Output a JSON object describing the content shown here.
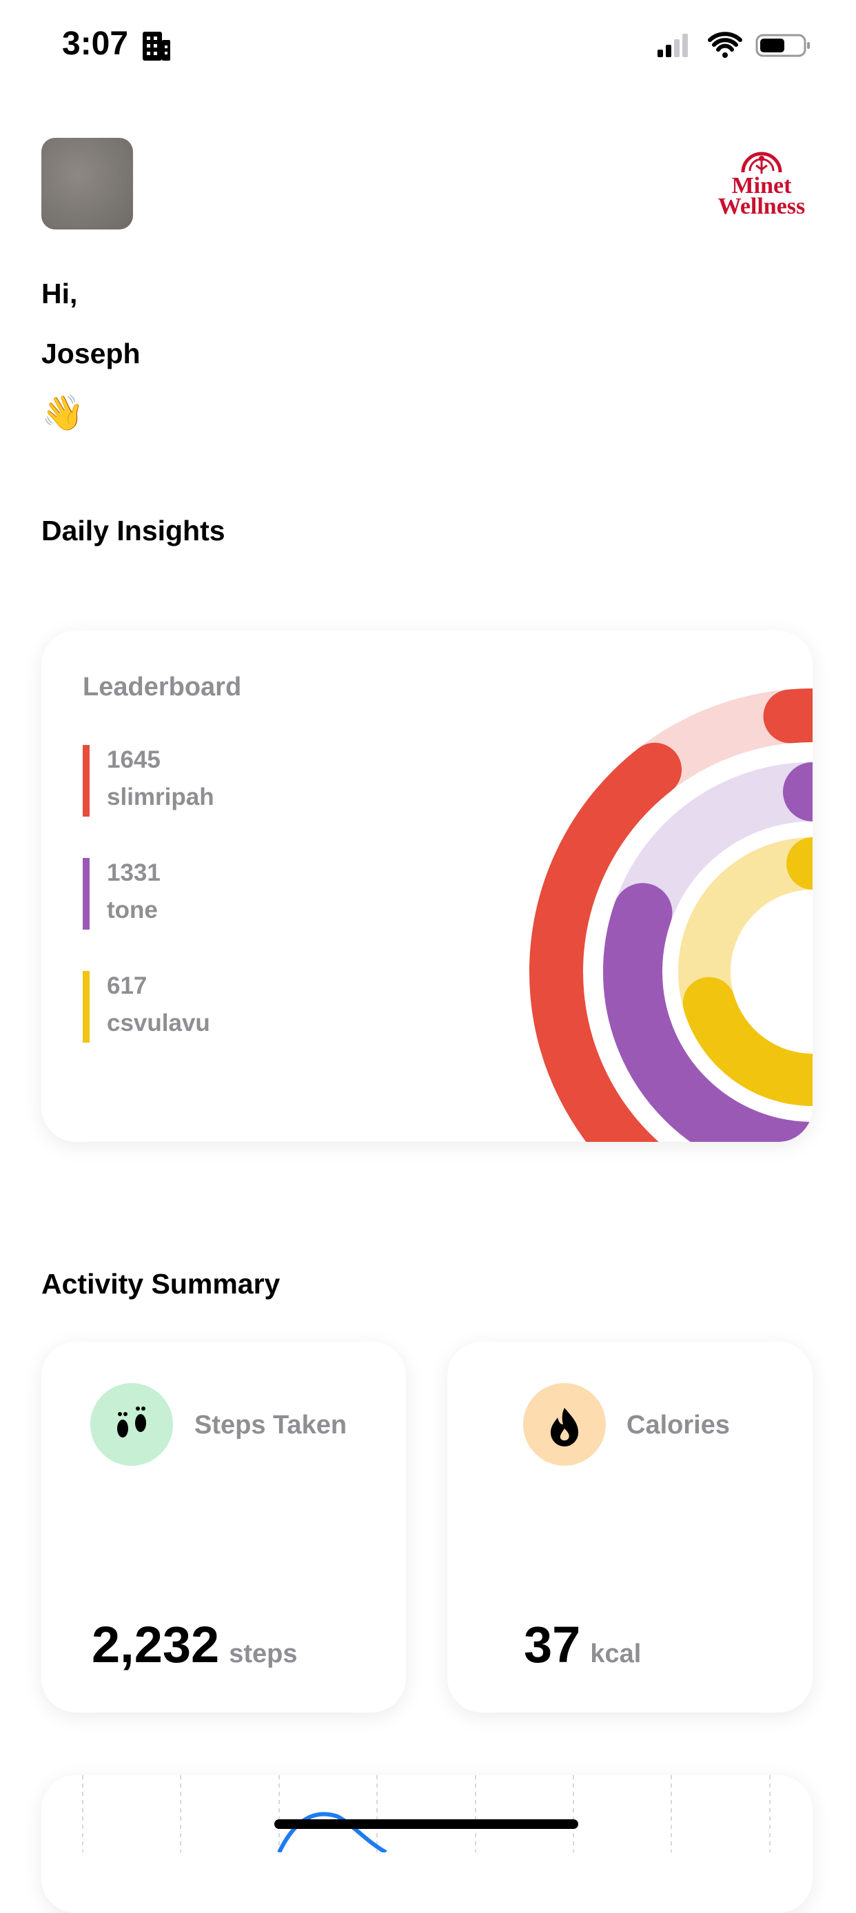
{
  "status_bar": {
    "time": "3:07"
  },
  "header": {
    "logo": [
      "Minet",
      "Wellness"
    ],
    "greeting": "Hi,",
    "name": "Joseph",
    "emoji": "👋"
  },
  "daily_insights": {
    "title": "Daily Insights",
    "leaderboard": {
      "title": "Leaderboard",
      "entries": [
        {
          "score": "1645",
          "name": "slimripah"
        },
        {
          "score": "1331",
          "name": "tone"
        },
        {
          "score": "617",
          "name": "csvulavu"
        }
      ]
    }
  },
  "activity_summary": {
    "title": "Activity Summary",
    "cards": [
      {
        "label": "Steps Taken",
        "value": "2,232",
        "unit": "steps"
      },
      {
        "label": "Calories",
        "value": "37",
        "unit": "kcal"
      }
    ]
  }
}
